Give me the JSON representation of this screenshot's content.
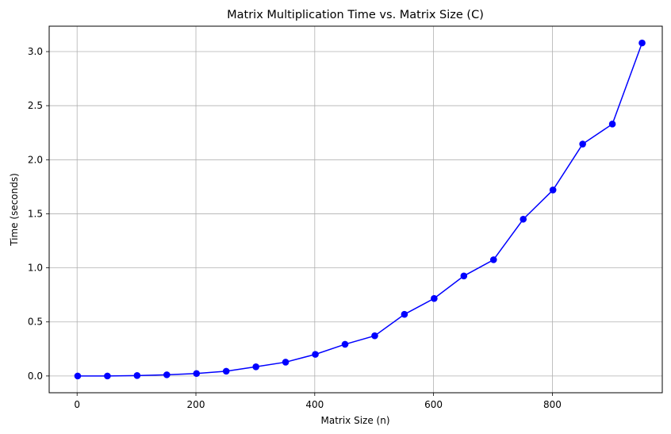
{
  "chart_data": {
    "type": "line",
    "title": "Matrix Multiplication Time vs. Matrix Size (C)",
    "xlabel": "Matrix Size (n)",
    "ylabel": "Time (seconds)",
    "xlim": [
      -47,
      985
    ],
    "ylim": [
      -0.155,
      3.235
    ],
    "xticks": [
      0,
      200,
      400,
      600,
      800
    ],
    "yticks": [
      0.0,
      0.5,
      1.0,
      1.5,
      2.0,
      2.5,
      3.0
    ],
    "xtick_labels": [
      "0",
      "200",
      "400",
      "600",
      "800"
    ],
    "ytick_labels": [
      "0.0",
      "0.5",
      "1.0",
      "1.5",
      "2.0",
      "2.5",
      "3.0"
    ],
    "grid": true,
    "series": [
      {
        "color": "#0000ff",
        "marker": "circle",
        "x": [
          1,
          51,
          101,
          151,
          201,
          251,
          301,
          351,
          401,
          451,
          501,
          551,
          601,
          651,
          701,
          751,
          801,
          851,
          901,
          951
        ],
        "y": [
          0.0,
          0.0,
          0.004,
          0.011,
          0.023,
          0.044,
          0.085,
          0.128,
          0.2,
          0.293,
          0.372,
          0.57,
          0.717,
          0.925,
          1.075,
          1.45,
          1.72,
          2.145,
          2.33,
          3.08
        ]
      }
    ]
  }
}
